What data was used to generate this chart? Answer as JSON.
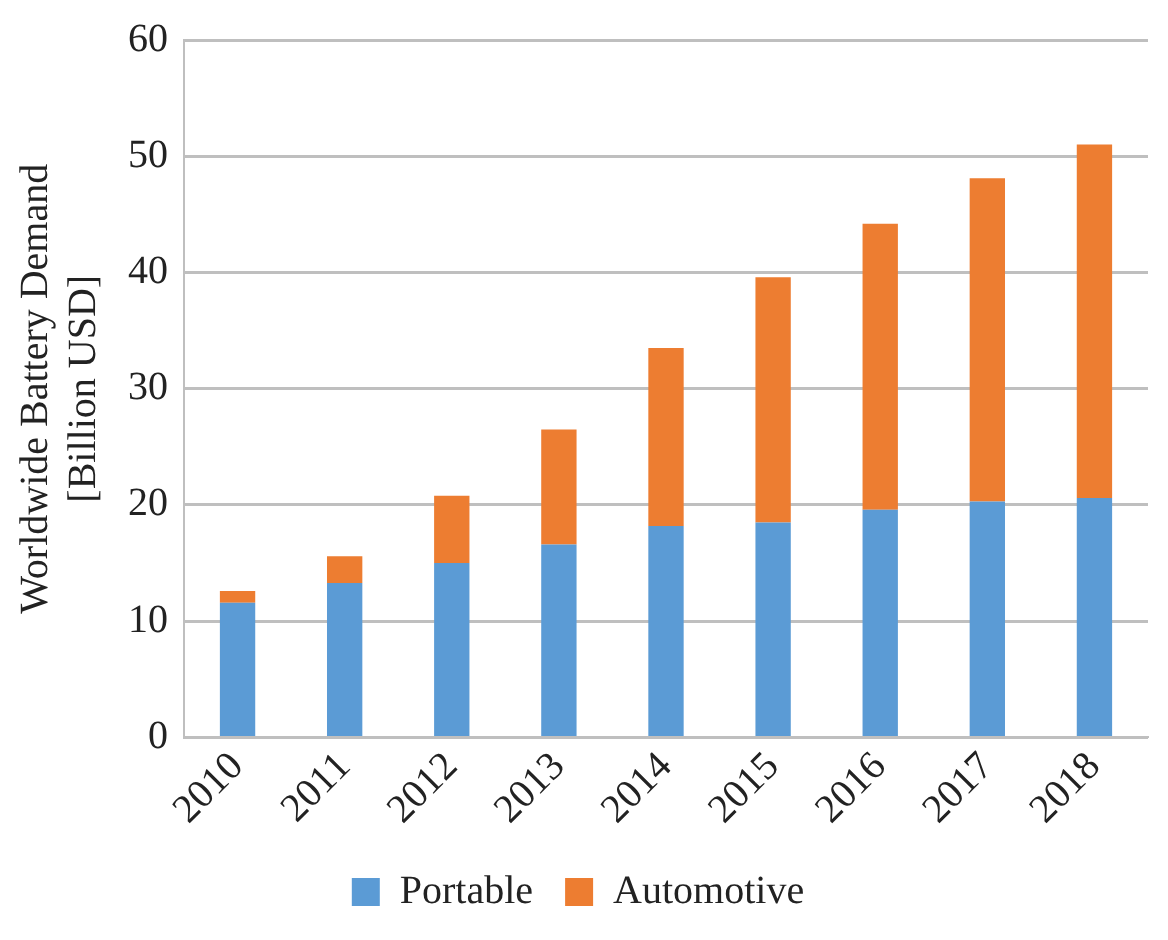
{
  "chart_data": {
    "type": "bar",
    "stacked": true,
    "ylabel": "Worldwide Battery Demand\n[Billion USD]",
    "categories": [
      "2010",
      "2011",
      "2012",
      "2013",
      "2014",
      "2015",
      "2016",
      "2017",
      "2018"
    ],
    "series": [
      {
        "name": "Portable",
        "color": "#5b9bd5",
        "values": [
          11.6,
          13.3,
          15.0,
          16.6,
          18.2,
          18.5,
          19.6,
          20.3,
          20.6
        ]
      },
      {
        "name": "Automotive",
        "color": "#ed7d31",
        "values": [
          1.0,
          2.3,
          5.8,
          9.9,
          15.3,
          21.1,
          24.6,
          27.8,
          30.4
        ]
      }
    ],
    "ylim": [
      0,
      60
    ],
    "yticks": [
      0,
      10,
      20,
      30,
      40,
      50,
      60
    ],
    "grid": "y",
    "legend": "bottom"
  }
}
